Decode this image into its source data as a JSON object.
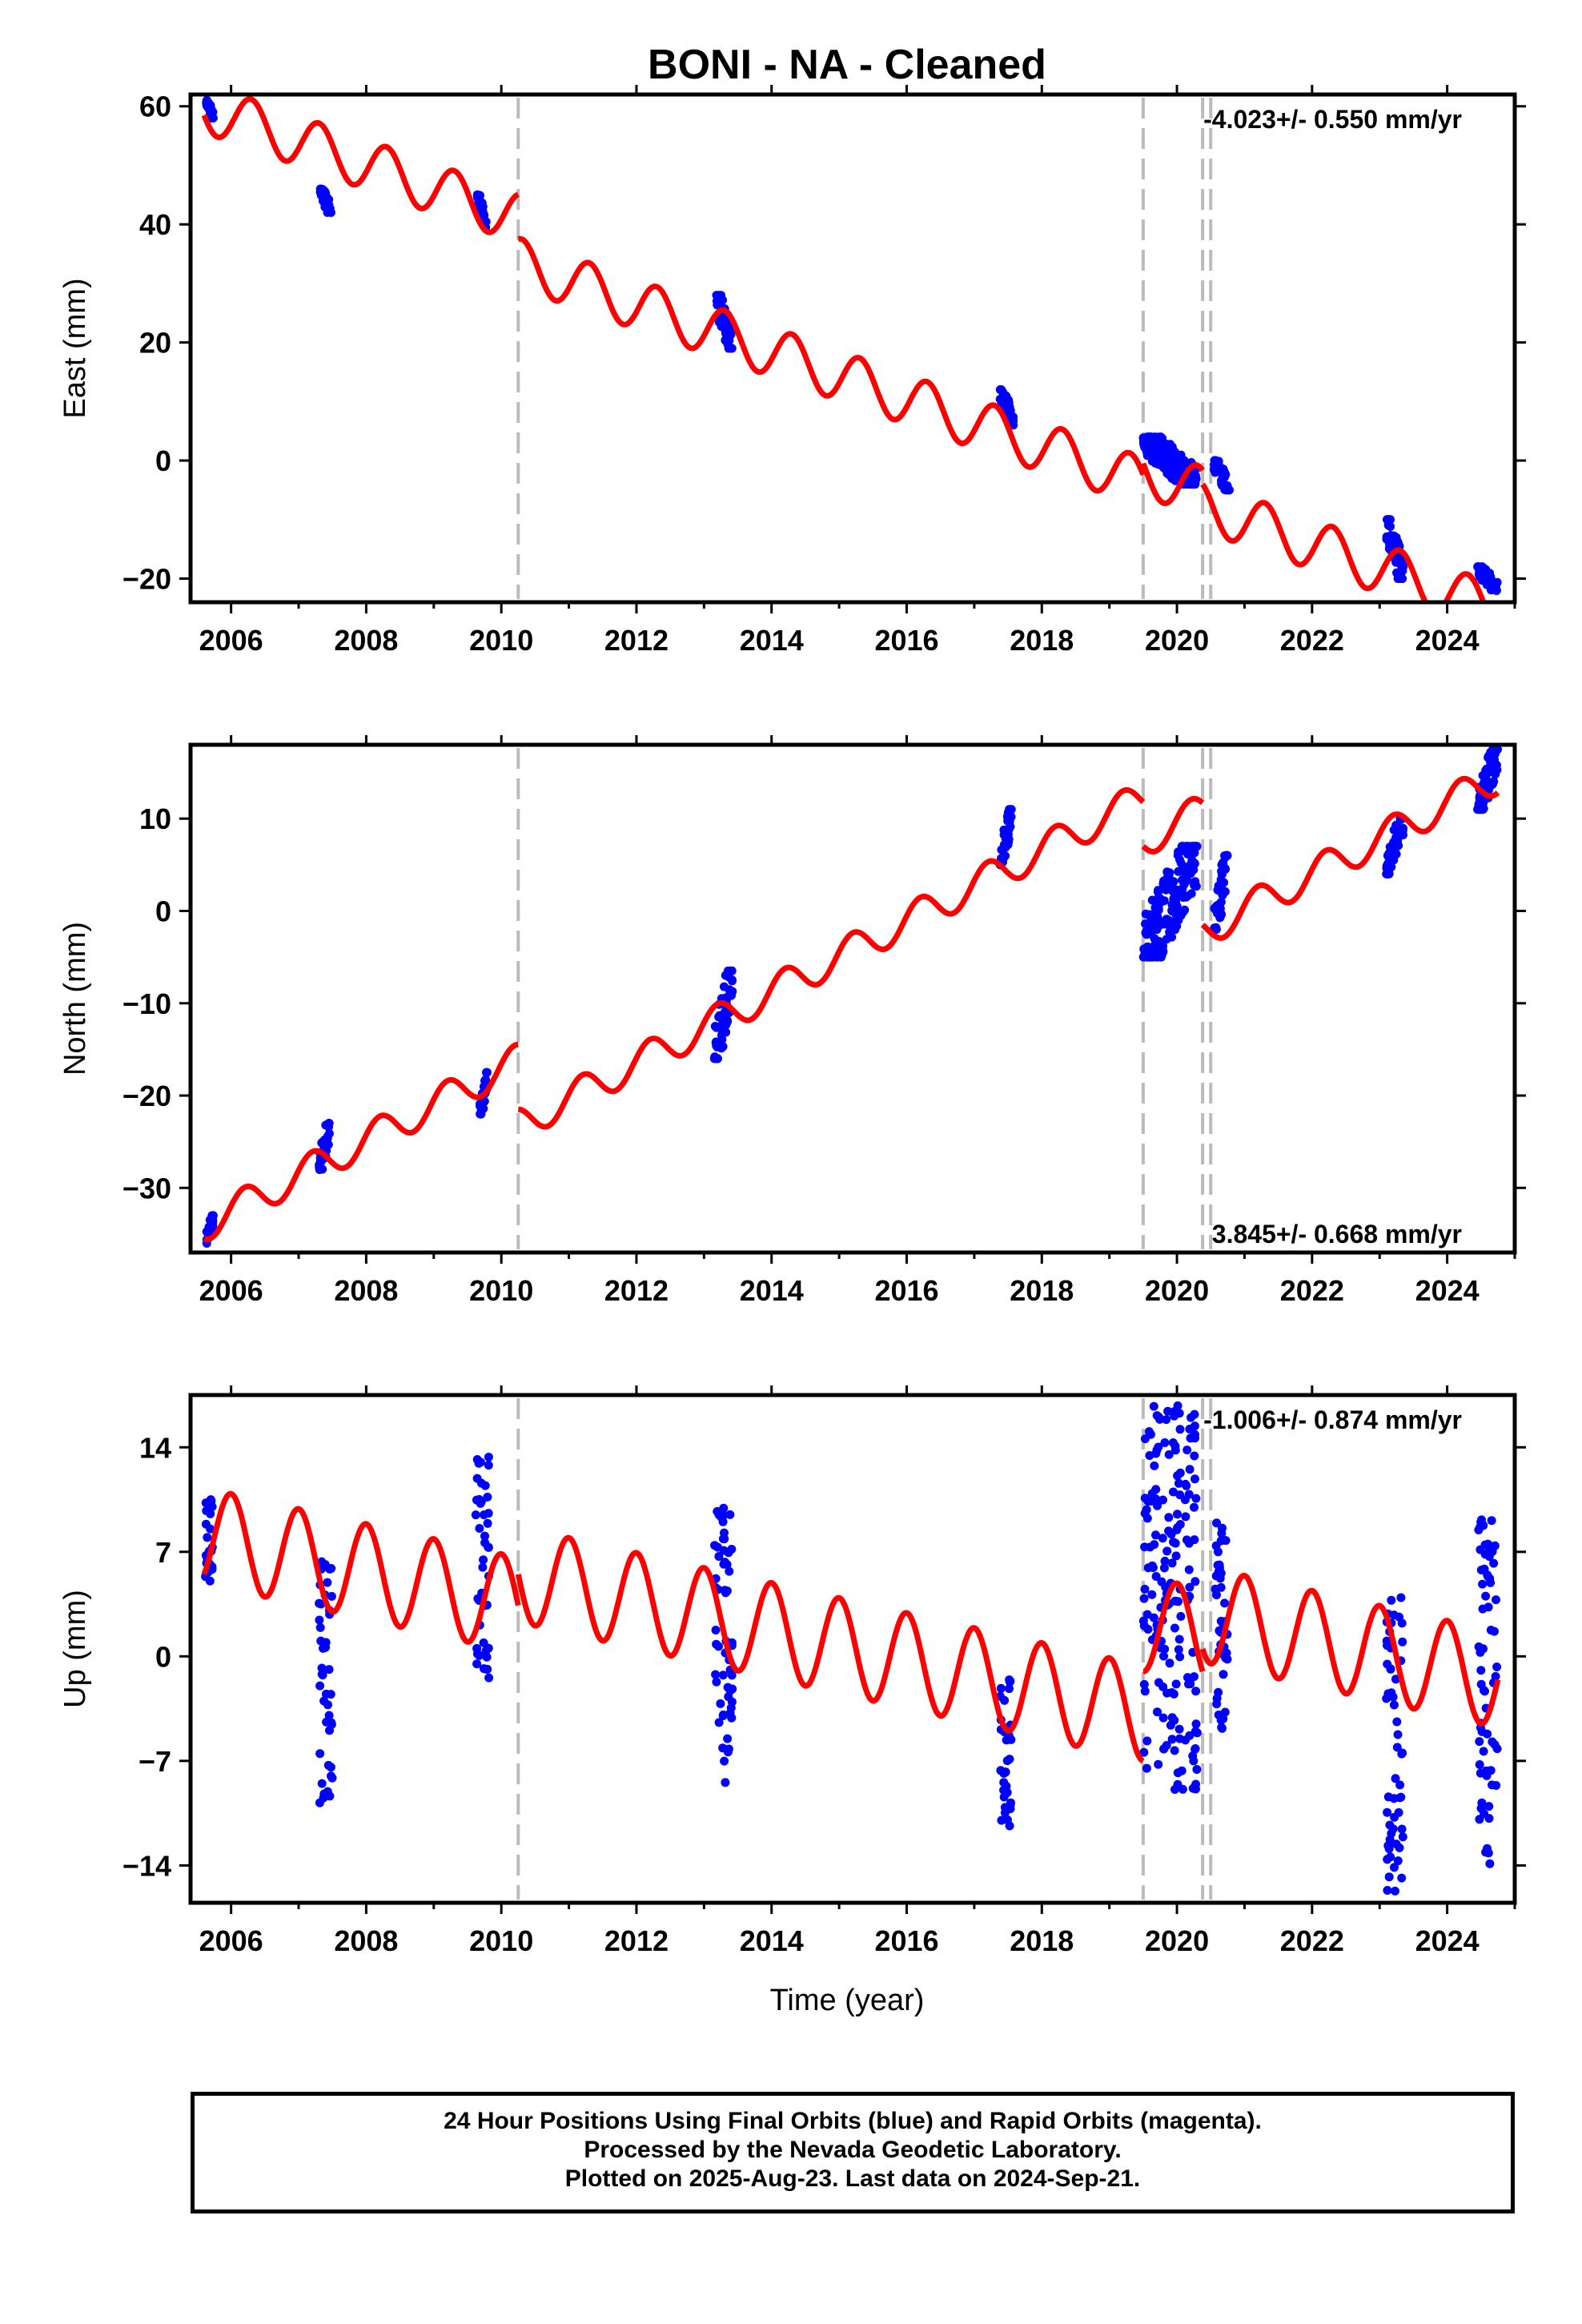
{
  "title": "BONI  - NA - Cleaned",
  "x_axis_label": "Time (year)",
  "footer": {
    "line1": "24 Hour Positions Using Final Orbits (blue) and Rapid Orbits (magenta).",
    "line2": "Processed by the Nevada Geodetic Laboratory.",
    "line3": "Plotted on 2025-Aug-23. Last data on 2024-Sep-21."
  },
  "colors": {
    "data": "#0000ff",
    "model": "#ff0000",
    "break": "#bbbbbb",
    "frame": "#000000"
  },
  "chart_data": [
    {
      "type": "scatter",
      "panel": "east",
      "ylabel": "East (mm)",
      "rate_text": "-4.023+/- 0.550 mm/yr",
      "xlim": [
        2005.4,
        2025.0
      ],
      "ylim": [
        -24,
        62
      ],
      "xticks": [
        2006,
        2008,
        2010,
        2012,
        2014,
        2016,
        2018,
        2020,
        2022,
        2024
      ],
      "yticks": [
        -20,
        0,
        20,
        40,
        60
      ],
      "breaks": [
        2010.25,
        2019.5,
        2020.38,
        2020.5
      ],
      "model": {
        "trend_per_year": -4.023,
        "annual_amplitude": 4.2,
        "annual_phase": 0.3,
        "steps": [
          {
            "start": 2005.6,
            "end": 2010.25,
            "offset_at_start": 58.5
          },
          {
            "start": 2010.25,
            "end": 2019.5,
            "offset_at_start": 37.5
          },
          {
            "start": 2019.5,
            "end": 2020.38,
            "offset_at_start": -0.5
          },
          {
            "start": 2020.38,
            "end": 2024.75,
            "offset_at_start": -4.0
          }
        ]
      },
      "data_clusters": [
        {
          "x": [
            2005.62,
            2005.74
          ],
          "y": [
            58,
            61
          ]
        },
        {
          "x": [
            2007.32,
            2007.48
          ],
          "y": [
            42,
            46
          ]
        },
        {
          "x": [
            2009.63,
            2009.78
          ],
          "y": [
            39.5,
            45
          ]
        },
        {
          "x": [
            2013.18,
            2013.42
          ],
          "y": [
            19,
            28
          ]
        },
        {
          "x": [
            2017.38,
            2017.58
          ],
          "y": [
            6,
            12
          ]
        },
        {
          "x": [
            2019.5,
            2020.3
          ],
          "y": [
            -4,
            4
          ]
        },
        {
          "x": [
            2020.55,
            2020.78
          ],
          "y": [
            -5,
            0
          ]
        },
        {
          "x": [
            2023.1,
            2023.35
          ],
          "y": [
            -20,
            -10
          ]
        },
        {
          "x": [
            2024.45,
            2024.75
          ],
          "y": [
            -22,
            -18
          ]
        }
      ]
    },
    {
      "type": "scatter",
      "panel": "north",
      "ylabel": "North (mm)",
      "rate_text": "3.845+/- 0.668 mm/yr",
      "xlim": [
        2005.4,
        2025.0
      ],
      "ylim": [
        -37,
        18
      ],
      "xticks": [
        2006,
        2008,
        2010,
        2012,
        2014,
        2016,
        2018,
        2020,
        2022,
        2024
      ],
      "yticks": [
        -30,
        -20,
        -10,
        0,
        10
      ],
      "breaks": [
        2010.25,
        2019.5,
        2020.38,
        2020.5
      ],
      "model": {
        "trend_per_year": 3.845,
        "annual_amplitude": 1.8,
        "annual_phase": 0.2,
        "steps": [
          {
            "start": 2005.6,
            "end": 2010.25,
            "offset_at_start": -35.5
          },
          {
            "start": 2010.25,
            "end": 2019.5,
            "offset_at_start": -21.5
          },
          {
            "start": 2019.5,
            "end": 2020.38,
            "offset_at_start": 7.0
          },
          {
            "start": 2020.38,
            "end": 2024.75,
            "offset_at_start": -1.5
          }
        ]
      },
      "data_clusters": [
        {
          "x": [
            2005.62,
            2005.74
          ],
          "y": [
            -36,
            -33
          ]
        },
        {
          "x": [
            2007.3,
            2007.46
          ],
          "y": [
            -28,
            -23
          ]
        },
        {
          "x": [
            2009.68,
            2009.8
          ],
          "y": [
            -22,
            -17.5
          ]
        },
        {
          "x": [
            2013.15,
            2013.42
          ],
          "y": [
            -16,
            -6.5
          ]
        },
        {
          "x": [
            2017.38,
            2017.55
          ],
          "y": [
            5,
            11
          ]
        },
        {
          "x": [
            2019.5,
            2020.3
          ],
          "y": [
            -5,
            7
          ]
        },
        {
          "x": [
            2020.55,
            2020.75
          ],
          "y": [
            -2,
            6
          ]
        },
        {
          "x": [
            2023.1,
            2023.35
          ],
          "y": [
            4,
            10
          ]
        },
        {
          "x": [
            2024.45,
            2024.75
          ],
          "y": [
            11,
            17.5
          ]
        }
      ]
    },
    {
      "type": "scatter",
      "panel": "up",
      "ylabel": "Up (mm)",
      "rate_text": "-1.006+/- 0.874 mm/yr",
      "xlim": [
        2005.4,
        2025.0
      ],
      "ylim": [
        -16.5,
        17.5
      ],
      "xticks": [
        2006,
        2008,
        2010,
        2012,
        2014,
        2016,
        2018,
        2020,
        2022,
        2024
      ],
      "yticks": [
        -14,
        -7,
        0,
        7,
        14
      ],
      "breaks": [
        2010.25,
        2019.5,
        2020.38,
        2020.5
      ],
      "model": {
        "trend_per_year": -1.006,
        "annual_amplitude": 3.2,
        "annual_phase": 0.0,
        "steps": [
          {
            "start": 2005.6,
            "end": 2010.25,
            "offset_at_start": 5.5
          },
          {
            "start": 2010.25,
            "end": 2019.5,
            "offset_at_start": 5.5
          },
          {
            "start": 2019.5,
            "end": 2020.38,
            "offset_at_start": -1.0
          },
          {
            "start": 2020.38,
            "end": 2024.75,
            "offset_at_start": 0.5
          }
        ]
      },
      "data_clusters": [
        {
          "x": [
            2005.62,
            2005.74
          ],
          "y": [
            5,
            10.5
          ]
        },
        {
          "x": [
            2007.3,
            2007.5
          ],
          "y": [
            -10,
            7
          ]
        },
        {
          "x": [
            2009.62,
            2009.82
          ],
          "y": [
            -1.5,
            13.5
          ]
        },
        {
          "x": [
            2013.15,
            2013.42
          ],
          "y": [
            -8.5,
            10
          ]
        },
        {
          "x": [
            2017.38,
            2017.55
          ],
          "y": [
            -12,
            -0.5
          ]
        },
        {
          "x": [
            2019.5,
            2020.3
          ],
          "y": [
            -9,
            17
          ]
        },
        {
          "x": [
            2020.55,
            2020.75
          ],
          "y": [
            -5,
            9
          ]
        },
        {
          "x": [
            2023.1,
            2023.35
          ],
          "y": [
            -16,
            4
          ]
        },
        {
          "x": [
            2024.45,
            2024.75
          ],
          "y": [
            -14,
            10
          ]
        }
      ]
    }
  ]
}
